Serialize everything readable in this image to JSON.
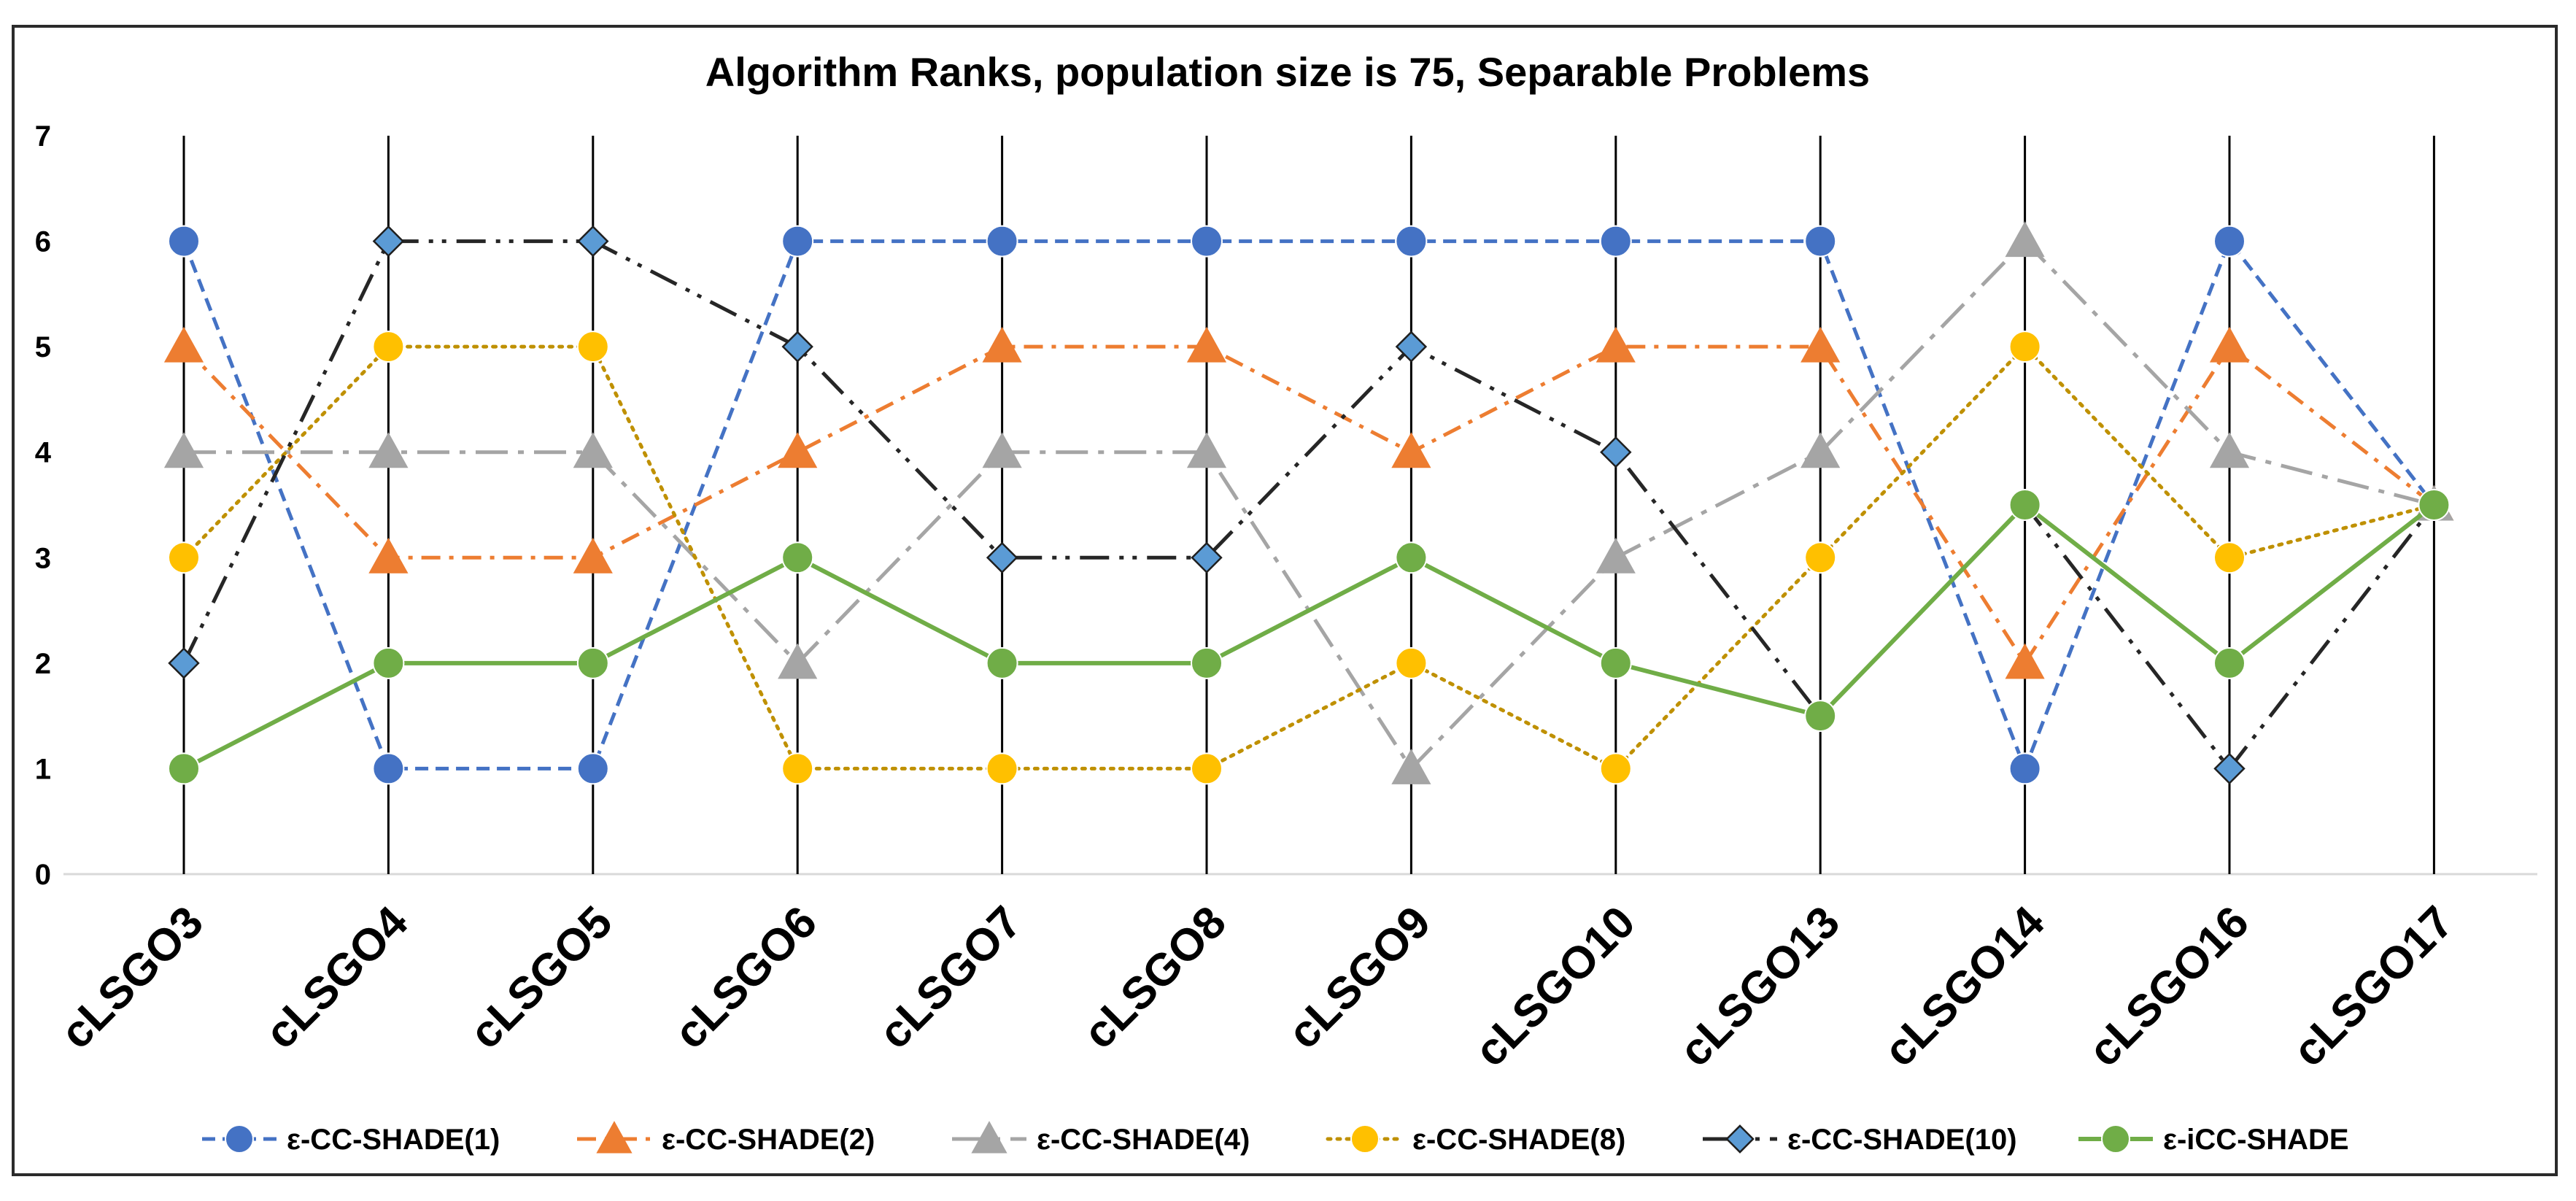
{
  "chart_data": {
    "type": "line",
    "title": "Algorithm Ranks, population size is 75, Separable Problems",
    "xlabel": "",
    "ylabel": "",
    "ylim": [
      0,
      7
    ],
    "yticks": [
      0,
      1,
      2,
      3,
      4,
      5,
      6,
      7
    ],
    "grid": "vertical lines at each category",
    "legend_position": "bottom",
    "categories": [
      "cLSGO3",
      "cLSGO4",
      "cLSGO5",
      "cLSGO6",
      "cLSGO7",
      "cLSGO8",
      "cLSGO9",
      "cLSGO10",
      "cLSGO13",
      "cLSGO14",
      "cLSGO16",
      "cLSGO17"
    ],
    "series": [
      {
        "name": "ε-CC-SHADE(1)",
        "color": "#4472C4",
        "marker": "circle",
        "dash": "dashed",
        "values": [
          6,
          1,
          1,
          6,
          6,
          6,
          6,
          6,
          6,
          1,
          6,
          3.5
        ]
      },
      {
        "name": "ε-CC-SHADE(2)",
        "color": "#ED7D31",
        "marker": "triangle",
        "dash": "dash-dot",
        "values": [
          5,
          3,
          3,
          4,
          5,
          5,
          4,
          5,
          5,
          2,
          5,
          3.5
        ]
      },
      {
        "name": "ε-CC-SHADE(4)",
        "color": "#A5A5A5",
        "marker": "triangle",
        "dash": "long-dash-dot",
        "values": [
          4,
          4,
          4,
          2,
          4,
          4,
          1,
          3,
          4,
          6,
          4,
          3.5
        ]
      },
      {
        "name": "ε-CC-SHADE(8)",
        "color": "#FFC000",
        "marker": "circle",
        "dash": "dotted",
        "line_color": "#BF9000",
        "values": [
          3,
          5,
          5,
          1,
          1,
          1,
          2,
          1,
          3,
          5,
          3,
          3.5
        ]
      },
      {
        "name": "ε-CC-SHADE(10)",
        "color": "#5B9BD5",
        "marker": "diamond",
        "dash": "long-dash-dot-dot",
        "line_color": "#262626",
        "values": [
          2,
          6,
          6,
          5,
          3,
          3,
          5,
          4,
          1.5,
          3.5,
          1,
          3.5
        ]
      },
      {
        "name": "ε-iCC-SHADE",
        "color": "#70AD47",
        "marker": "circle",
        "dash": "solid",
        "values": [
          1,
          2,
          2,
          3,
          2,
          2,
          3,
          2,
          1.5,
          3.5,
          2,
          3.5
        ]
      }
    ]
  }
}
